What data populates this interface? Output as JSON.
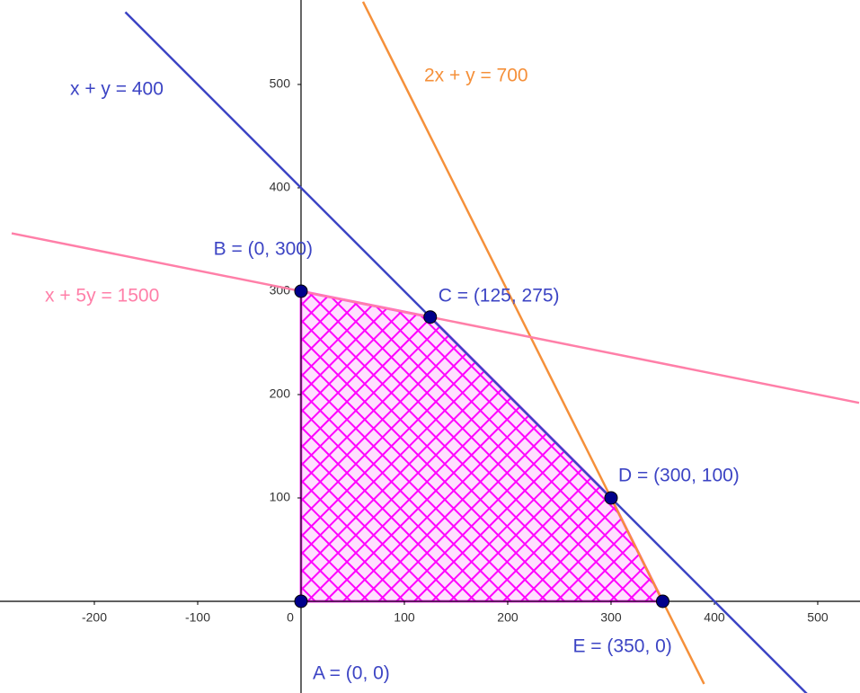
{
  "chart_data": {
    "type": "lp-region",
    "xlim": [
      -291.3,
      540.9
    ],
    "ylim": [
      -88.7,
      581.7
    ],
    "xticks": [
      -200,
      -100,
      0,
      100,
      200,
      300,
      400,
      500
    ],
    "yticks": [
      100,
      200,
      300,
      400,
      500
    ],
    "series": [
      {
        "name": "x + y = 400",
        "color": "#3c44c4",
        "x": [
          -170,
          500
        ],
        "values": [
          570,
          -100
        ]
      },
      {
        "name": "2x + y = 700",
        "color": "#f5903a",
        "x": [
          60,
          390
        ],
        "values": [
          580,
          -80
        ]
      },
      {
        "name": "x + 5y = 1500",
        "color": "#ff7fa8",
        "x": [
          -280,
          540
        ],
        "values": [
          356,
          192
        ]
      }
    ],
    "region": {
      "color": "#ff00ff",
      "x": [
        0,
        0,
        125,
        300,
        350
      ],
      "values": [
        0,
        300,
        275,
        100,
        0
      ]
    },
    "points": {
      "color": "#00008b",
      "label_color": "#3c44c4",
      "labels": [
        "A = (0, 0)",
        "B = (0, 300)",
        "C = (125, 275)",
        "D = (300, 100)",
        "E = (350, 0)"
      ],
      "x": [
        0,
        0,
        125,
        300,
        350
      ],
      "values": [
        0,
        300,
        275,
        100,
        0
      ]
    }
  }
}
